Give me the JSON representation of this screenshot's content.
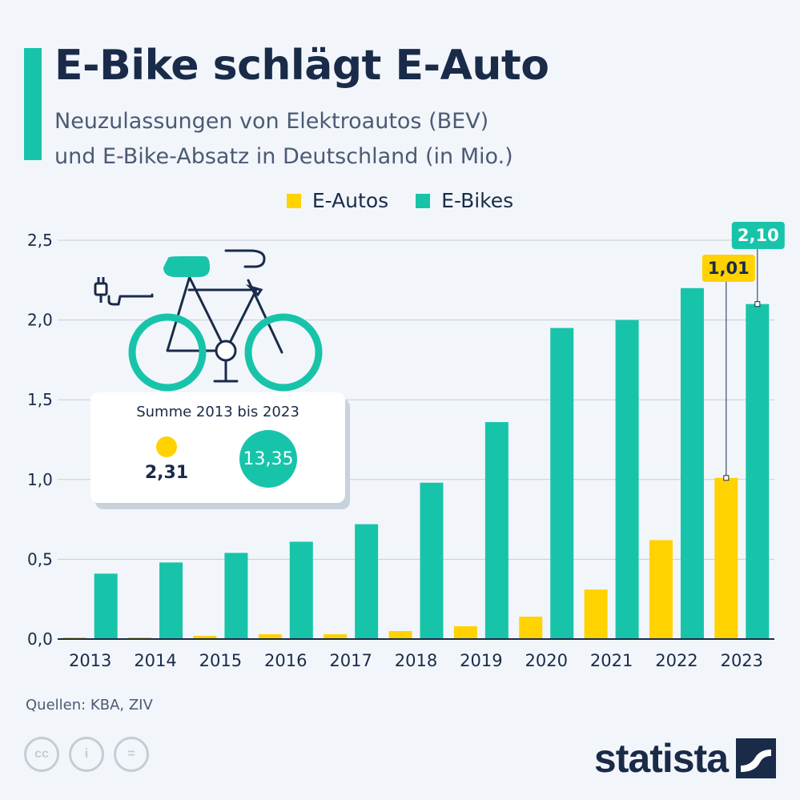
{
  "header": {
    "title": "E-Bike schlägt E-Auto",
    "subtitle_lines": [
      "Neuzulassungen von Elektroautos (BEV)",
      "und E-Bike-Absatz in Deutschland (in Mio.)"
    ]
  },
  "legend": {
    "ev_label": "E-Autos",
    "ebike_label": "E-Bikes"
  },
  "colors": {
    "ev": "#ffd200",
    "ebike": "#17c4aa",
    "grid": "#c5cdd6",
    "text": "#1a2b49"
  },
  "summary": {
    "title": "Summe 2013 bis 2023",
    "ev_total": "2,31",
    "ebike_total": "13,35"
  },
  "source": "Quellen: KBA, ZIV",
  "cc_icons": [
    "cc",
    "i",
    "="
  ],
  "brand": "statista",
  "chart_data": {
    "type": "bar",
    "title": "E-Bike schlägt E-Auto",
    "categories": [
      "2013",
      "2014",
      "2015",
      "2016",
      "2017",
      "2018",
      "2019",
      "2020",
      "2021",
      "2022",
      "2023"
    ],
    "series": [
      {
        "name": "E-Autos",
        "values": [
          0.01,
          0.01,
          0.02,
          0.03,
          0.03,
          0.05,
          0.08,
          0.14,
          0.31,
          0.62,
          1.01
        ]
      },
      {
        "name": "E-Bikes",
        "values": [
          0.41,
          0.48,
          0.54,
          0.61,
          0.72,
          0.98,
          1.36,
          1.95,
          2.0,
          2.2,
          2.1
        ]
      }
    ],
    "ylim": [
      0,
      2.5
    ],
    "yticks": [
      {
        "value": 0,
        "label": "0,0"
      },
      {
        "value": 0.5,
        "label": "0,5"
      },
      {
        "value": 1.0,
        "label": "1,0"
      },
      {
        "value": 1.5,
        "label": "1,5"
      },
      {
        "value": 2.0,
        "label": "2,0"
      },
      {
        "value": 2.5,
        "label": "2,5"
      }
    ],
    "data_labels": [
      {
        "series": "E-Autos",
        "category": "2023",
        "text": "1,01"
      },
      {
        "series": "E-Bikes",
        "category": "2023",
        "text": "2,10"
      }
    ],
    "grid": true,
    "legend": "top-center"
  }
}
